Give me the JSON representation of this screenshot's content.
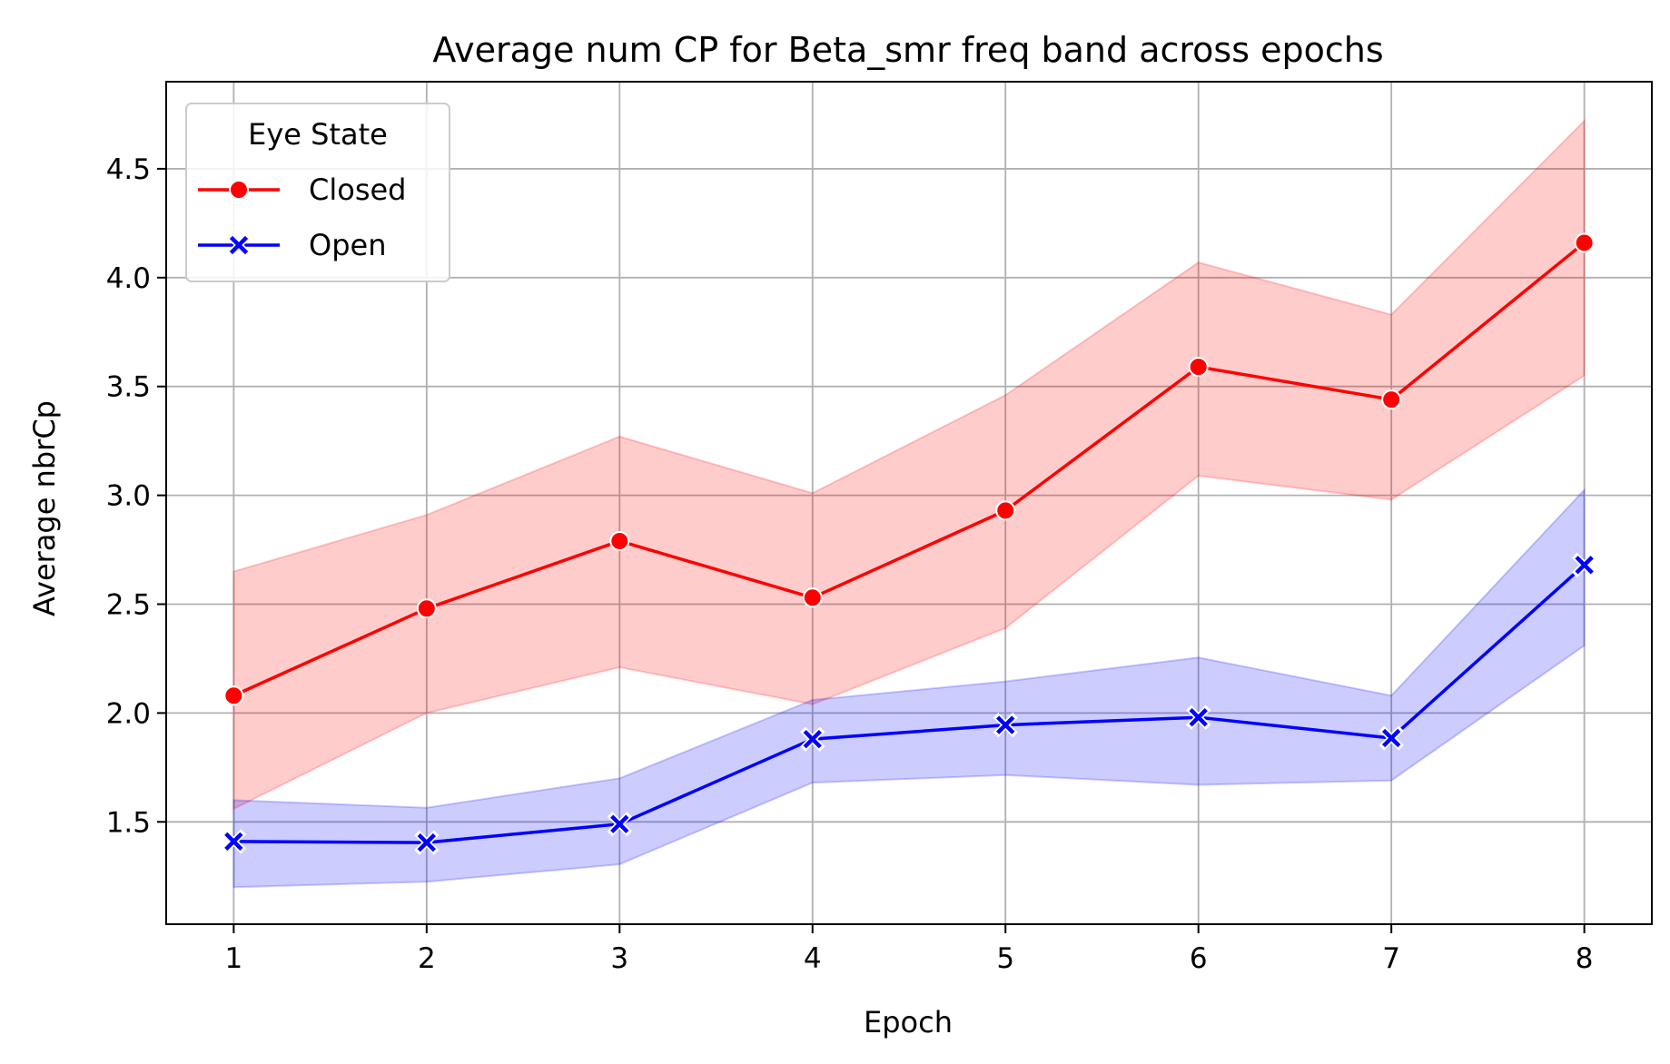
{
  "chart_data": {
    "type": "line",
    "title": "Average num CP for Beta_smr freq band across epochs",
    "xlabel": "Epoch",
    "ylabel": "Average nbrCp",
    "x": [
      1,
      2,
      3,
      4,
      5,
      6,
      7,
      8
    ],
    "xlim": [
      0.65,
      8.35
    ],
    "ylim": [
      1.03,
      4.9
    ],
    "xticks": [
      1,
      2,
      3,
      4,
      5,
      6,
      7,
      8
    ],
    "yticks": [
      1.5,
      2.0,
      2.5,
      3.0,
      3.5,
      4.0,
      4.5
    ],
    "ytick_labels": [
      "1.5",
      "2.0",
      "2.5",
      "3.0",
      "3.5",
      "4.0",
      "4.5"
    ],
    "grid": true,
    "legend": {
      "title": "Eye State",
      "placement": "top-left"
    },
    "series": [
      {
        "name": "Closed",
        "color": "#ff0000",
        "band_color": "#ff0000",
        "marker": "circle",
        "values": [
          2.08,
          2.48,
          2.79,
          2.53,
          2.93,
          3.59,
          3.44,
          4.16
        ],
        "ci_lower": [
          1.56,
          2.0,
          2.21,
          2.04,
          2.39,
          3.09,
          2.98,
          3.55
        ],
        "ci_upper": [
          2.65,
          2.91,
          3.27,
          3.01,
          3.46,
          4.07,
          3.83,
          4.72
        ]
      },
      {
        "name": "Open",
        "color": "#0000ff",
        "band_color": "#0000ff",
        "marker": "x",
        "values": [
          1.41,
          1.405,
          1.49,
          1.88,
          1.945,
          1.98,
          1.885,
          2.68
        ],
        "ci_lower": [
          1.2,
          1.225,
          1.305,
          1.68,
          1.715,
          1.67,
          1.69,
          2.31
        ],
        "ci_upper": [
          1.6,
          1.565,
          1.7,
          2.06,
          2.145,
          2.255,
          2.08,
          3.025
        ]
      }
    ]
  }
}
